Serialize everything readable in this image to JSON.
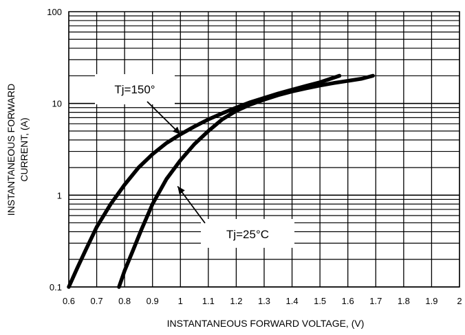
{
  "chart_data": {
    "type": "line",
    "xlabel": "INSTANTANEOUS FORWARD VOLTAGE, (V)",
    "ylabel_line1": "INSTANTANEOUS FORWARD",
    "ylabel_line2": "CURRENT, (A)",
    "x_scale": "linear",
    "y_scale": "log",
    "xlim": [
      0.6,
      2.0
    ],
    "ylim": [
      0.1,
      100
    ],
    "grid": true,
    "x_ticks": [
      "0.6",
      "0.7",
      "0.8",
      "0.9",
      "1",
      "1.1",
      "1.2",
      "1.3",
      "1.4",
      "1.5",
      "1.6",
      "1.7",
      "1.8",
      "1.9",
      "2"
    ],
    "y_ticks": [
      "0.1",
      "1",
      "10",
      "100"
    ],
    "series": [
      {
        "name": "Tj=150°",
        "x": [
          0.6,
          0.63,
          0.66,
          0.7,
          0.75,
          0.8,
          0.85,
          0.9,
          0.95,
          1.0,
          1.05,
          1.1,
          1.15,
          1.2,
          1.25,
          1.3,
          1.35,
          1.4,
          1.45,
          1.5,
          1.57
        ],
        "y": [
          0.1,
          0.16,
          0.25,
          0.45,
          0.8,
          1.3,
          2.0,
          2.8,
          3.7,
          4.6,
          5.6,
          6.7,
          7.8,
          9.0,
          10.3,
          11.5,
          12.8,
          14.1,
          15.5,
          17.0,
          20.0
        ]
      },
      {
        "name": "Tj=25°C",
        "x": [
          0.78,
          0.8,
          0.83,
          0.86,
          0.9,
          0.95,
          1.0,
          1.05,
          1.1,
          1.15,
          1.2,
          1.25,
          1.3,
          1.35,
          1.4,
          1.45,
          1.5,
          1.55,
          1.6,
          1.65,
          1.69
        ],
        "y": [
          0.1,
          0.15,
          0.25,
          0.42,
          0.8,
          1.5,
          2.4,
          3.6,
          5.0,
          6.7,
          8.3,
          9.7,
          11.0,
          12.3,
          13.5,
          14.6,
          15.7,
          16.7,
          17.6,
          18.6,
          20.0
        ]
      }
    ],
    "annotations": [
      {
        "text": "Tj=150°",
        "series": 0,
        "x": 1.0,
        "y": 4.6
      },
      {
        "text": "Tj=25°C",
        "series": 1,
        "x": 0.99,
        "y": 1.25
      }
    ]
  }
}
